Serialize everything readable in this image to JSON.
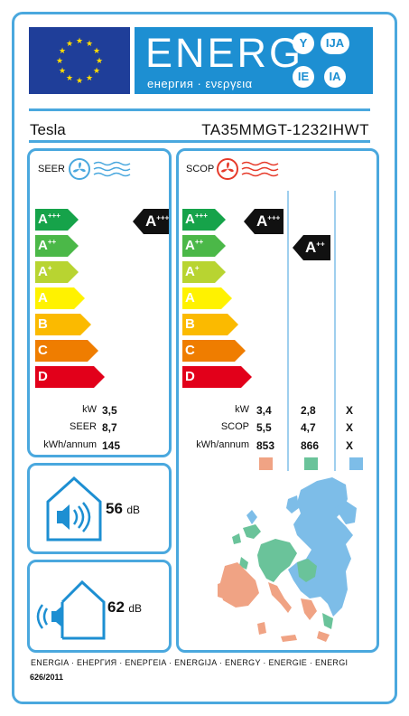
{
  "header": {
    "energ": "ENERG",
    "sub": "енергия · ενεργεια",
    "circles": [
      "Y",
      "IJA",
      "IE",
      "IA"
    ]
  },
  "supplier": "Tesla",
  "model": "TA35MMGT-1232IHWT",
  "seer": {
    "label": "SEER",
    "classes": [
      "A+++",
      "A++",
      "A+",
      "A",
      "B",
      "C",
      "D"
    ],
    "class_colors": [
      "#16a34a",
      "#4bb848",
      "#b8d431",
      "#fff200",
      "#fbba00",
      "#ef7d00",
      "#e2001a"
    ],
    "rating": "A+++",
    "rows": [
      {
        "label": "kW",
        "value": "3,5"
      },
      {
        "label": "SEER",
        "value": "8,7"
      },
      {
        "label": "kWh/annum",
        "value": "145"
      }
    ]
  },
  "scop": {
    "label": "SCOP",
    "rating_warm": "A+++",
    "rating_average": "A++",
    "rows": [
      {
        "label": "kW",
        "v1": "3,4",
        "v2": "2,8",
        "v3": "X"
      },
      {
        "label": "SCOP",
        "v1": "5,5",
        "v2": "4,7",
        "v3": "X"
      },
      {
        "label": "kWh/annum",
        "v1": "853",
        "v2": "866",
        "v3": "X"
      }
    ],
    "zone_colors": [
      "#f0a384",
      "#6ac39a",
      "#7dbde8"
    ]
  },
  "noise": {
    "indoor_value": "56",
    "indoor_unit": "dB",
    "outdoor_value": "62",
    "outdoor_unit": "dB"
  },
  "footer": {
    "languages": "ENERGIA · ЕНЕРГИЯ · ΕΝΕΡΓΕΙΑ · ENERGIJA · ENERGY · ENERGIE · ENERGI",
    "regulation": "626/2011"
  }
}
